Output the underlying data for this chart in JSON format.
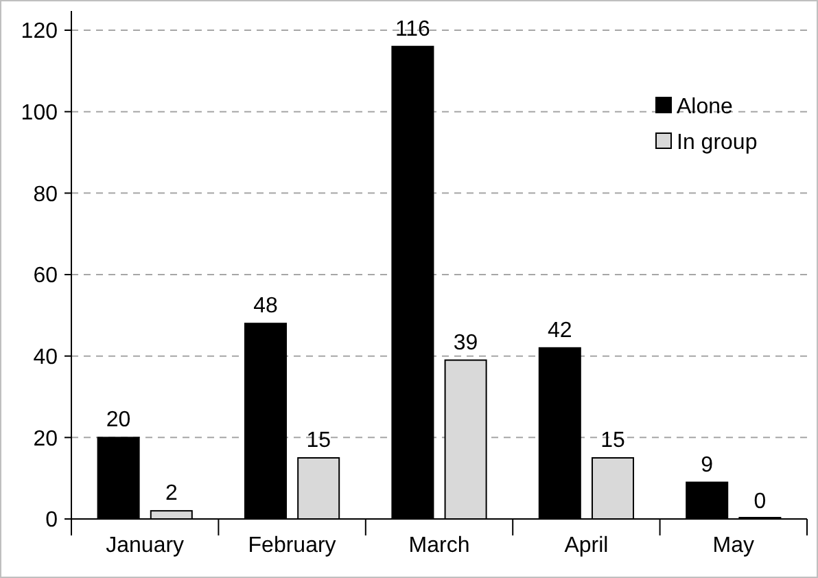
{
  "chart_data": {
    "type": "bar",
    "categories": [
      "January",
      "February",
      "March",
      "April",
      "May"
    ],
    "series": [
      {
        "name": "Alone",
        "color": "#000000",
        "values": [
          20,
          48,
          116,
          42,
          9
        ]
      },
      {
        "name": "In group",
        "color": "#d9d9d9",
        "values": [
          2,
          15,
          39,
          15,
          0
        ]
      }
    ],
    "ylim": [
      0,
      120
    ],
    "yticks": [
      0,
      20,
      40,
      60,
      80,
      100,
      120
    ],
    "grid": "y",
    "legend": "top right",
    "data_labels": true
  }
}
